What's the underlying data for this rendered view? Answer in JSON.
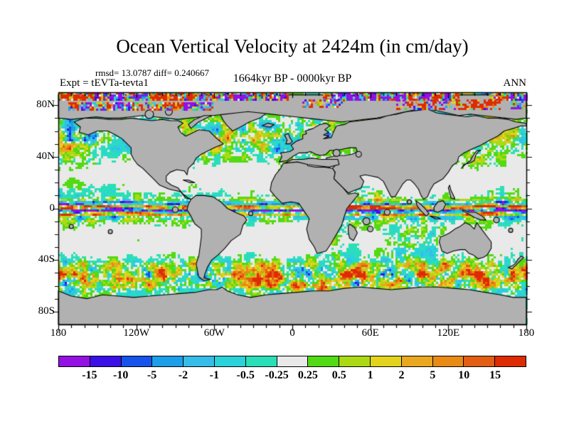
{
  "header": {
    "title": "Ocean Vertical Velocity at 2424m (in cm/day)",
    "stats": "rmsd= 13.0787 diff= 0.240667",
    "experiment": "Expt = tEVTa-tevta1",
    "period": "1664kyr BP - 0000kyr BP",
    "season": "ANN"
  },
  "map": {
    "x_tick_labels": [
      "180",
      "120W",
      "60W",
      "0",
      "60E",
      "120E",
      "180"
    ],
    "y_tick_labels": [
      "80N",
      "40N",
      "0",
      "40S",
      "80S"
    ],
    "land_color": "#b1b1b1",
    "coast_color": "#000000",
    "frame_color": "#000000"
  },
  "colorbar": {
    "boundary_labels": [
      "-15",
      "-10",
      "-5",
      "-2",
      "-1",
      "-0.5",
      "-0.25",
      "0.25",
      "0.5",
      "1",
      "2",
      "5",
      "10",
      "15"
    ],
    "colors": [
      "#9410e3",
      "#3a10e6",
      "#1553ea",
      "#1c9ee8",
      "#35bce8",
      "#2ad2da",
      "#2adfb8",
      "#e9e9e9",
      "#52da14",
      "#abda14",
      "#e3d31d",
      "#e9a820",
      "#e98a15",
      "#e25e12",
      "#de2b03"
    ]
  },
  "chart_data": {
    "type": "heatmap",
    "subtype": "filled-contour world map of ocean vertical velocity",
    "title": "Ocean Vertical Velocity at 2424m (in cm/day)",
    "variable": "ocean vertical velocity",
    "depth": "2424m",
    "units": "cm/day",
    "statistics": {
      "rmsd": 13.0787,
      "diff": 0.240667
    },
    "experiment": "tEVTa-tevta1",
    "period": "1664kyr BP - 0000kyr BP",
    "season": "ANN",
    "contour_levels": [
      -15,
      -10,
      -5,
      -2,
      -1,
      -0.5,
      -0.25,
      0.25,
      0.5,
      1,
      2,
      5,
      10,
      15
    ],
    "palette": [
      "#9410e3",
      "#3a10e6",
      "#1553ea",
      "#1c9ee8",
      "#35bce8",
      "#2ad2da",
      "#2adfb8",
      "#e9e9e9",
      "#52da14",
      "#abda14",
      "#e3d31d",
      "#e9a820",
      "#e98a15",
      "#e25e12",
      "#de2b03"
    ],
    "x_axis": {
      "label": "longitude",
      "range": [
        -180,
        180
      ],
      "ticks": [
        "180",
        "120W",
        "60W",
        "0",
        "60E",
        "120E",
        "180"
      ]
    },
    "y_axis": {
      "label": "latitude",
      "range": [
        -90,
        90
      ],
      "ticks": [
        "80N",
        "40N",
        "0",
        "40S",
        "80S"
      ]
    },
    "legend_position": "bottom",
    "notes": "near-zero values (white) dominate subtropical gyres; strong alternating up/downwelling bands along the equator, Southern Ocean, subpolar North Atlantic and Arctic margin; land masked gray"
  }
}
